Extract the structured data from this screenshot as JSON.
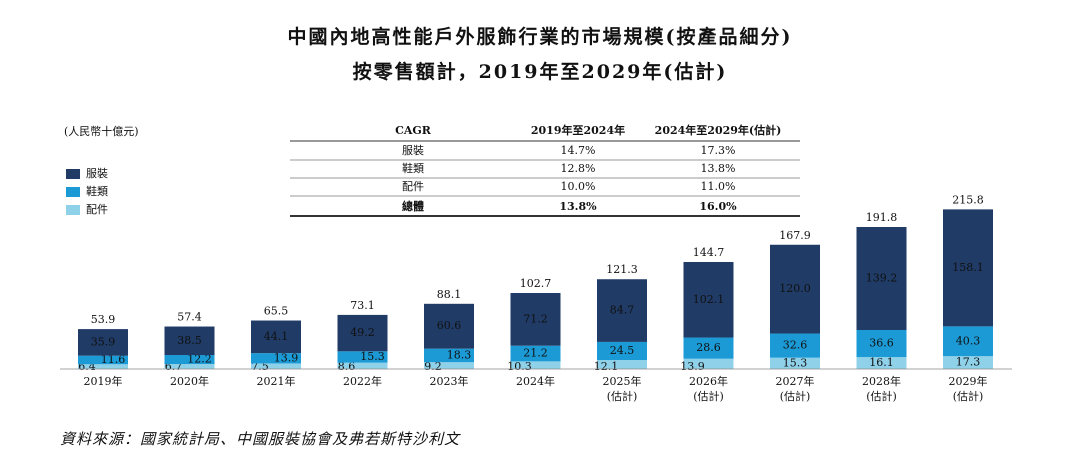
{
  "chart_data": {
    "type": "stacked_bar",
    "title": "中國內地高性能戶外服飾行業的市場規模(按產品細分)",
    "subtitle": "按零售額計，2019年至2029年(估計)",
    "unit": "(人民幣十億元)",
    "categories": [
      [
        "2019年"
      ],
      [
        "2020年"
      ],
      [
        "2021年"
      ],
      [
        "2022年"
      ],
      [
        "2023年"
      ],
      [
        "2024年"
      ],
      [
        "2025年",
        "(估計)"
      ],
      [
        "2026年",
        "(估計)"
      ],
      [
        "2027年",
        "(估計)"
      ],
      [
        "2028年",
        "(估計)"
      ],
      [
        "2029年",
        "(估計)"
      ]
    ],
    "series": [
      {
        "name": "服裝",
        "color": "#1f3b66",
        "values": [
          35.9,
          38.5,
          44.1,
          49.2,
          60.6,
          71.2,
          84.7,
          102.1,
          120.0,
          139.2,
          158.1
        ],
        "value_labels": [
          "35.9",
          "38.5",
          "44.1",
          "49.2",
          "60.6",
          "71.2",
          "84.7",
          "102.1",
          "120.0",
          "139.2",
          "158.1"
        ]
      },
      {
        "name": "鞋類",
        "color": "#1b9ad6",
        "values": [
          11.6,
          12.2,
          13.9,
          15.3,
          18.3,
          21.2,
          24.5,
          28.6,
          32.6,
          36.6,
          40.3
        ]
      },
      {
        "name": "配件",
        "color": "#8fd1e9",
        "values": [
          6.4,
          6.7,
          7.5,
          8.6,
          9.2,
          10.3,
          12.1,
          13.9,
          15.3,
          16.1,
          17.3
        ]
      }
    ],
    "totals": [
      53.9,
      57.4,
      65.5,
      73.1,
      88.1,
      102.7,
      121.3,
      144.7,
      167.9,
      191.8,
      215.8
    ],
    "cagr_table": {
      "header": [
        "CAGR",
        "2019年至2024年",
        "2024年至2029年(估計)"
      ],
      "rows": [
        [
          "服裝",
          "14.7%",
          "17.3%"
        ],
        [
          "鞋類",
          "12.8%",
          "13.8%"
        ],
        [
          "配件",
          "10.0%",
          "11.0%"
        ],
        [
          "總體",
          "13.8%",
          "16.0%"
        ]
      ]
    },
    "source": "資料來源：國家統計局、中國服裝協會及弗若斯特沙利文"
  }
}
